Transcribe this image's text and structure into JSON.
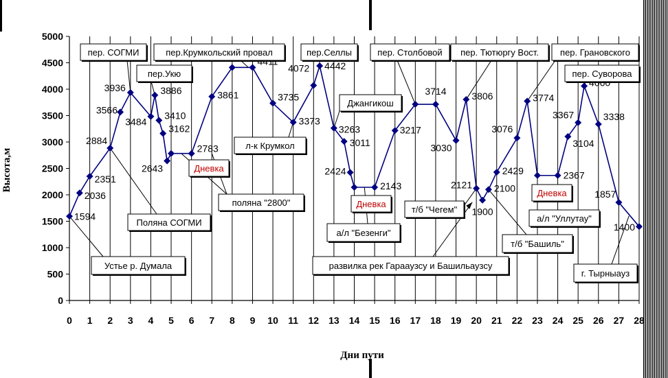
{
  "chart_data": {
    "type": "line",
    "title": "",
    "xlabel": "Дни пути",
    "ylabel": "Высота,м",
    "xlim": [
      0,
      28
    ],
    "ylim": [
      0,
      5000
    ],
    "x_ticks": [
      "0",
      "1",
      "2",
      "3",
      "4",
      "5",
      "6",
      "7",
      "8",
      "9",
      "10",
      "11",
      "12",
      "13",
      "14",
      "15",
      "16",
      "17",
      "18",
      "19",
      "20",
      "21",
      "22",
      "23",
      "24",
      "25",
      "26",
      "27",
      "28"
    ],
    "y_ticks": [
      "0",
      "500",
      "1000",
      "1500",
      "2000",
      "2500",
      "3000",
      "3500",
      "4000",
      "4500",
      "5000"
    ],
    "grid": "vertical",
    "series_color": "#000080",
    "points": [
      {
        "x": 0,
        "y": 1594,
        "label": "1594"
      },
      {
        "x": 0.5,
        "y": 2036,
        "label": "2036"
      },
      {
        "x": 1,
        "y": 2351,
        "label": "2351"
      },
      {
        "x": 2,
        "y": 2884,
        "label": "2884"
      },
      {
        "x": 2.5,
        "y": 3566,
        "label": "3566"
      },
      {
        "x": 3,
        "y": 3936,
        "label": "3936"
      },
      {
        "x": 4,
        "y": 3484,
        "label": "3484"
      },
      {
        "x": 4.2,
        "y": 3886,
        "label": "3886"
      },
      {
        "x": 4.4,
        "y": 3410,
        "label": "3410"
      },
      {
        "x": 4.6,
        "y": 3162,
        "label": "3162"
      },
      {
        "x": 4.8,
        "y": 2643,
        "label": "2643"
      },
      {
        "x": 5,
        "y": 2783,
        "label": ""
      },
      {
        "x": 6,
        "y": 2783,
        "label": "2783"
      },
      {
        "x": 7,
        "y": 3861,
        "label": "3861"
      },
      {
        "x": 8,
        "y": 4411,
        "label": ""
      },
      {
        "x": 9,
        "y": 4411,
        "label": "4411"
      },
      {
        "x": 10,
        "y": 3735,
        "label": "3735"
      },
      {
        "x": 11,
        "y": 3373,
        "label": "3373"
      },
      {
        "x": 12,
        "y": 4072,
        "label": "4072"
      },
      {
        "x": 12.3,
        "y": 4442,
        "label": "4442"
      },
      {
        "x": 13,
        "y": 3263,
        "label": "3263"
      },
      {
        "x": 13.5,
        "y": 3011,
        "label": "3011"
      },
      {
        "x": 13.8,
        "y": 2424,
        "label": "2424"
      },
      {
        "x": 14,
        "y": 2143,
        "label": ""
      },
      {
        "x": 15,
        "y": 2143,
        "label": "2143"
      },
      {
        "x": 16,
        "y": 3217,
        "label": "3217"
      },
      {
        "x": 17,
        "y": 3714,
        "label": ""
      },
      {
        "x": 18,
        "y": 3714,
        "label": "3714"
      },
      {
        "x": 19,
        "y": 3030,
        "label": "3030"
      },
      {
        "x": 19.5,
        "y": 3806,
        "label": "3806"
      },
      {
        "x": 20,
        "y": 2121,
        "label": "2121"
      },
      {
        "x": 20.3,
        "y": 1900,
        "label": "1900"
      },
      {
        "x": 20.6,
        "y": 2100,
        "label": "2100"
      },
      {
        "x": 21,
        "y": 2429,
        "label": "2429"
      },
      {
        "x": 22,
        "y": 3076,
        "label": "3076"
      },
      {
        "x": 22.5,
        "y": 3774,
        "label": "3774"
      },
      {
        "x": 23,
        "y": 2367,
        "label": ""
      },
      {
        "x": 24,
        "y": 2367,
        "label": "2367"
      },
      {
        "x": 24.5,
        "y": 3104,
        "label": "3104"
      },
      {
        "x": 25,
        "y": 3367,
        "label": "3367"
      },
      {
        "x": 25.3,
        "y": 4060,
        "label": "4060"
      },
      {
        "x": 26,
        "y": 3338,
        "label": "3338"
      },
      {
        "x": 27,
        "y": 1857,
        "label": "1857"
      },
      {
        "x": 28,
        "y": 1400,
        "label": "1400"
      }
    ],
    "annotations": [
      {
        "text": "пер. СОГМИ",
        "color": "#000000"
      },
      {
        "text": "пер.Укю",
        "color": "#000000"
      },
      {
        "text": "пер.Крумкольский провал",
        "color": "#000000"
      },
      {
        "text": "пер.Селлы",
        "color": "#000000"
      },
      {
        "text": "пер. Столбовой",
        "color": "#000000"
      },
      {
        "text": "пер. Тютюргу Вост.",
        "color": "#000000"
      },
      {
        "text": "пер. Грановского",
        "color": "#000000"
      },
      {
        "text": "пер. Суворова",
        "color": "#000000"
      },
      {
        "text": "Джангикош",
        "color": "#000000"
      },
      {
        "text": "л-к Крумкол",
        "color": "#000000"
      },
      {
        "text": "Дневка",
        "color": "#c00000"
      },
      {
        "text": "Дневка",
        "color": "#c00000"
      },
      {
        "text": "Дневка",
        "color": "#c00000"
      },
      {
        "text": "поляна \"2800\"",
        "color": "#000000"
      },
      {
        "text": "Поляна СОГМИ",
        "color": "#000000"
      },
      {
        "text": "Устье р. Думала",
        "color": "#000000"
      },
      {
        "text": "а/л \"Безенги\"",
        "color": "#000000"
      },
      {
        "text": "т/б \"Чегем\"",
        "color": "#000000"
      },
      {
        "text": "а/л \"Уллутау\"",
        "color": "#000000"
      },
      {
        "text": "т/б \"Башиль\"",
        "color": "#000000"
      },
      {
        "text": "развилка рек Гарааузсу и Башильаузсу",
        "color": "#000000"
      },
      {
        "text": "г. Тырныауз",
        "color": "#000000"
      }
    ]
  }
}
